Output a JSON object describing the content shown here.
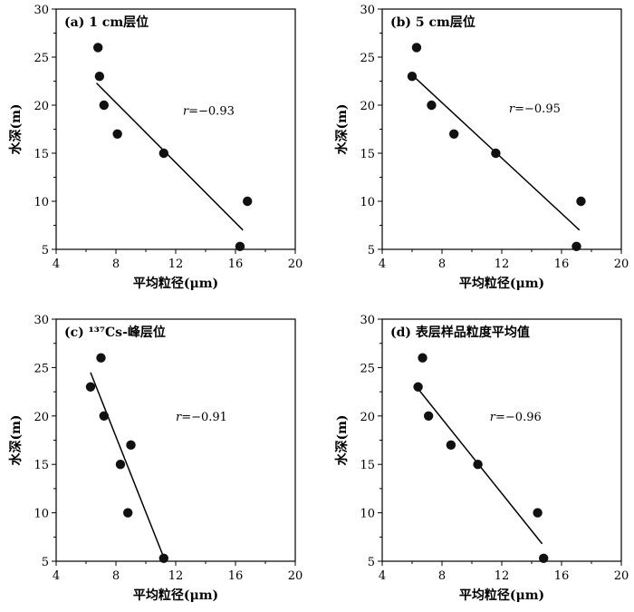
{
  "chart_data": [
    {
      "type": "scatter",
      "title": "(a) 1 cm层位",
      "xlabel": "平均粒径(μm)",
      "ylabel": "水深(m)",
      "xlim": [
        4,
        20
      ],
      "ylim": [
        5,
        30
      ],
      "xticks": [
        "4",
        "8",
        "12",
        "16",
        "20"
      ],
      "yticks": [
        "5",
        "10",
        "15",
        "20",
        "25",
        "30"
      ],
      "points": [
        [
          6.8,
          26
        ],
        [
          6.9,
          23
        ],
        [
          7.2,
          20
        ],
        [
          8.1,
          17
        ],
        [
          11.2,
          15
        ],
        [
          16.8,
          10
        ],
        [
          16.3,
          5.3
        ]
      ],
      "trendline": [
        [
          6.7,
          22.3
        ],
        [
          16.5,
          7.0
        ]
      ],
      "annotation": {
        "label": "r",
        "value": "=−0.93"
      },
      "grid": false
    },
    {
      "type": "scatter",
      "title": "(b) 5 cm层位",
      "xlabel": "平均粒径(μm)",
      "ylabel": "水深(m)",
      "xlim": [
        4,
        20
      ],
      "ylim": [
        5,
        30
      ],
      "xticks": [
        "4",
        "8",
        "12",
        "16",
        "20"
      ],
      "yticks": [
        "5",
        "10",
        "15",
        "20",
        "25",
        "30"
      ],
      "points": [
        [
          6.3,
          26
        ],
        [
          6.0,
          23
        ],
        [
          7.3,
          20
        ],
        [
          8.8,
          17
        ],
        [
          11.6,
          15
        ],
        [
          17.3,
          10
        ],
        [
          17.0,
          5.3
        ]
      ],
      "trendline": [
        [
          6.1,
          23.0
        ],
        [
          17.2,
          7.0
        ]
      ],
      "annotation": {
        "label": "r",
        "value": "=−0.95"
      },
      "grid": false
    },
    {
      "type": "scatter",
      "title": "(c) ¹³⁷Cs-峰层位",
      "xlabel": "平均粒径(μm)",
      "ylabel": "水深(m)",
      "xlim": [
        4,
        20
      ],
      "ylim": [
        5,
        30
      ],
      "xticks": [
        "4",
        "8",
        "12",
        "16",
        "20"
      ],
      "yticks": [
        "5",
        "10",
        "15",
        "20",
        "25",
        "30"
      ],
      "points": [
        [
          7.0,
          26
        ],
        [
          6.3,
          23
        ],
        [
          7.2,
          20
        ],
        [
          9.0,
          17
        ],
        [
          8.3,
          15
        ],
        [
          8.8,
          10
        ],
        [
          11.2,
          5.3
        ]
      ],
      "trendline": [
        [
          6.3,
          24.5
        ],
        [
          11.3,
          5.0
        ]
      ],
      "annotation": {
        "label": "r",
        "value": "=−0.91"
      },
      "grid": false
    },
    {
      "type": "scatter",
      "title": "(d) 表层样品粒度平均值",
      "xlabel": "平均粒径(μm)",
      "ylabel": "水深(m)",
      "xlim": [
        4,
        20
      ],
      "ylim": [
        5,
        30
      ],
      "xticks": [
        "4",
        "8",
        "12",
        "16",
        "20"
      ],
      "yticks": [
        "5",
        "10",
        "15",
        "20",
        "25",
        "30"
      ],
      "points": [
        [
          6.7,
          26
        ],
        [
          6.4,
          23
        ],
        [
          7.1,
          20
        ],
        [
          8.6,
          17
        ],
        [
          10.4,
          15
        ],
        [
          14.4,
          10
        ],
        [
          14.8,
          5.3
        ]
      ],
      "trendline": [
        [
          6.4,
          22.8
        ],
        [
          14.7,
          6.8
        ]
      ],
      "annotation": {
        "label": "r",
        "value": "=−0.96"
      },
      "grid": false
    }
  ]
}
